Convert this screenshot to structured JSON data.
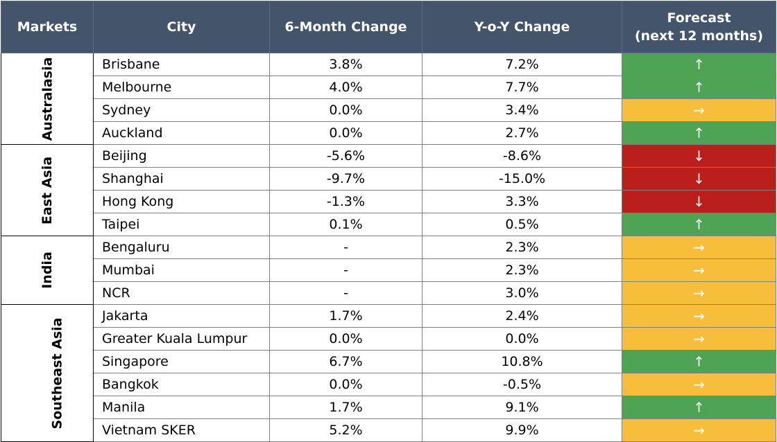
{
  "headers": {
    "markets": "Markets",
    "city": "City",
    "six_month": "6-Month Change",
    "yoy": "Y-o-Y Change",
    "forecast_line1": "Forecast",
    "forecast_line2": "(next 12 months)"
  },
  "colors": {
    "header_bg": "#44546a",
    "up": "#4ea354",
    "flat": "#f7be3c",
    "down": "#ba1f1c"
  },
  "arrow_glyphs": {
    "up": "↑",
    "flat": "→",
    "down": "↓"
  },
  "groups": [
    {
      "market": "Australasia",
      "rows": [
        {
          "city": "Brisbane",
          "six_month": "3.8%",
          "yoy": "7.2%",
          "forecast": "up"
        },
        {
          "city": "Melbourne",
          "six_month": "4.0%",
          "yoy": "7.7%",
          "forecast": "up"
        },
        {
          "city": "Sydney",
          "six_month": "0.0%",
          "yoy": "3.4%",
          "forecast": "flat"
        },
        {
          "city": "Auckland",
          "six_month": "0.0%",
          "yoy": "2.7%",
          "forecast": "up"
        }
      ]
    },
    {
      "market": "East Asia",
      "rows": [
        {
          "city": "Beijing",
          "six_month": "-5.6%",
          "yoy": "-8.6%",
          "forecast": "down"
        },
        {
          "city": "Shanghai",
          "six_month": "-9.7%",
          "yoy": "-15.0%",
          "forecast": "down"
        },
        {
          "city": "Hong Kong",
          "six_month": "-1.3%",
          "yoy": "3.3%",
          "forecast": "down"
        },
        {
          "city": "Taipei",
          "six_month": "0.1%",
          "yoy": "0.5%",
          "forecast": "up"
        }
      ]
    },
    {
      "market": "India",
      "rows": [
        {
          "city": "Bengaluru",
          "six_month": "-",
          "yoy": "2.3%",
          "forecast": "flat"
        },
        {
          "city": "Mumbai",
          "six_month": "-",
          "yoy": "2.3%",
          "forecast": "flat"
        },
        {
          "city": "NCR",
          "six_month": "-",
          "yoy": "3.0%",
          "forecast": "flat"
        }
      ]
    },
    {
      "market": "Southeast Asia",
      "rows": [
        {
          "city": "Jakarta",
          "six_month": "1.7%",
          "yoy": "2.4%",
          "forecast": "flat"
        },
        {
          "city": "Greater Kuala Lumpur",
          "six_month": "0.0%",
          "yoy": "0.0%",
          "forecast": "flat"
        },
        {
          "city": "Singapore",
          "six_month": "6.7%",
          "yoy": "10.8%",
          "forecast": "up"
        },
        {
          "city": "Bangkok",
          "six_month": "0.0%",
          "yoy": "-0.5%",
          "forecast": "flat"
        },
        {
          "city": "Manila",
          "six_month": "1.7%",
          "yoy": "9.1%",
          "forecast": "up"
        },
        {
          "city": "Vietnam SKER",
          "six_month": "5.2%",
          "yoy": "9.9%",
          "forecast": "flat"
        }
      ]
    }
  ]
}
